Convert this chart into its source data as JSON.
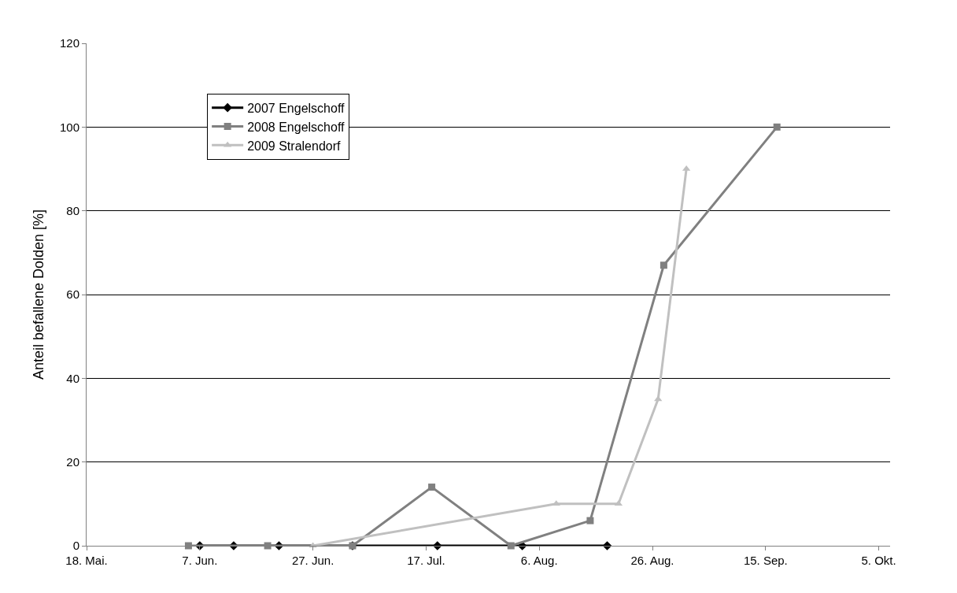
{
  "chart_data": {
    "type": "line",
    "ylabel": "Anteil befallene Dolden [%]",
    "xlim": [
      "--05-18",
      "--10-07"
    ],
    "xticks": [
      {
        "value": "--05-18",
        "label": "18. Mai."
      },
      {
        "value": "--06-07",
        "label": "7. Jun."
      },
      {
        "value": "--06-27",
        "label": "27. Jun."
      },
      {
        "value": "--07-17",
        "label": "17. Jul."
      },
      {
        "value": "--08-06",
        "label": "6. Aug."
      },
      {
        "value": "--08-26",
        "label": "26. Aug."
      },
      {
        "value": "--09-15",
        "label": "15. Sep."
      },
      {
        "value": "--10-05",
        "label": "5. Okt."
      }
    ],
    "ylim": [
      0,
      120
    ],
    "yticks": [
      0,
      20,
      40,
      60,
      80,
      100,
      120
    ],
    "grid": "y",
    "legend": "top left",
    "series": [
      {
        "name": "2007 Engelschoff",
        "color": "#000000",
        "marker": "diamond",
        "x": [
          "--06-07",
          "--06-13",
          "--06-21",
          "--07-04",
          "--07-19",
          "--08-03",
          "--08-18"
        ],
        "values": [
          0,
          0,
          0,
          0,
          0,
          0,
          0
        ]
      },
      {
        "name": "2008 Engelschoff",
        "color": "#808080",
        "marker": "square",
        "x": [
          "--06-05",
          "--06-19",
          "--07-04",
          "--07-18",
          "--08-01",
          "--08-15",
          "--08-28",
          "--09-17"
        ],
        "values": [
          0,
          0,
          0,
          14,
          0,
          6,
          67,
          100
        ]
      },
      {
        "name": "2009 Stralendorf",
        "color": "#c0c0c0",
        "marker": "triangle",
        "x": [
          "--06-27",
          "--08-09",
          "--08-20",
          "--08-27",
          "--09-01"
        ],
        "values": [
          0,
          10,
          10,
          35,
          90
        ]
      }
    ]
  }
}
